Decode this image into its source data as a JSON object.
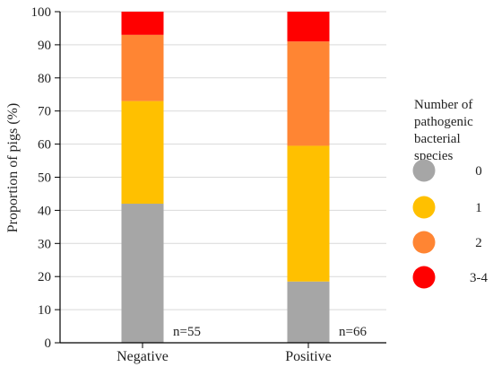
{
  "chart_data": {
    "type": "bar",
    "stacked": true,
    "categories": [
      "Negative",
      "Positive"
    ],
    "ylabel": "Proportion of pigs (%)",
    "ylim": [
      0,
      100
    ],
    "ytick_step": 10,
    "grid": true,
    "series": [
      {
        "name": "0",
        "color": "#a6a6a6",
        "values": [
          42,
          18.5
        ]
      },
      {
        "name": "1",
        "color": "#ffc000",
        "values": [
          31,
          41
        ]
      },
      {
        "name": "2",
        "color": "#ff8533",
        "values": [
          20,
          31.5
        ]
      },
      {
        "name": "3-4",
        "color": "#ff0000",
        "values": [
          7,
          9
        ]
      }
    ],
    "annotations": [
      "n=55",
      "n=66"
    ],
    "legend": {
      "title": [
        "Number of",
        "pathogenic",
        "bacterial",
        "species"
      ],
      "position": "right"
    }
  }
}
